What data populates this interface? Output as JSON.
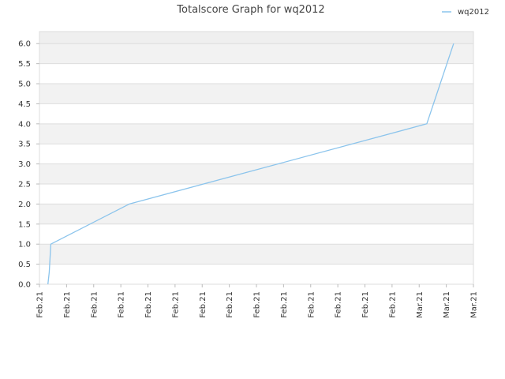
{
  "chart_data": {
    "type": "line",
    "title": "Totalscore Graph for wq2012",
    "xlabel": "",
    "ylabel": "",
    "legend": {
      "position": "top-right",
      "entries": [
        "wq2012"
      ]
    },
    "grid": true,
    "ylim": [
      0,
      6.3
    ],
    "y_ticks": [
      "0.0",
      "0.5",
      "1.0",
      "1.5",
      "2.0",
      "2.5",
      "3.0",
      "3.5",
      "4.0",
      "4.5",
      "5.0",
      "5.5",
      "6.0"
    ],
    "x_ticks": [
      "Feb.21",
      "Feb.21",
      "Feb.21",
      "Feb.21",
      "Feb.21",
      "Feb.21",
      "Feb.21",
      "Feb.21",
      "Feb.21",
      "Feb.21",
      "Feb.21",
      "Feb.21",
      "Feb.21",
      "Feb.21",
      "Mar.21",
      "Mar.21",
      "Mar.21"
    ],
    "series": [
      {
        "name": "wq2012",
        "color": "#8bc4ec",
        "x": [
          0.31,
          0.36,
          0.42,
          3.31,
          14.28,
          15.27
        ],
        "y": [
          0,
          0.3,
          1.0,
          2.0,
          4.0,
          6.0
        ]
      }
    ]
  }
}
